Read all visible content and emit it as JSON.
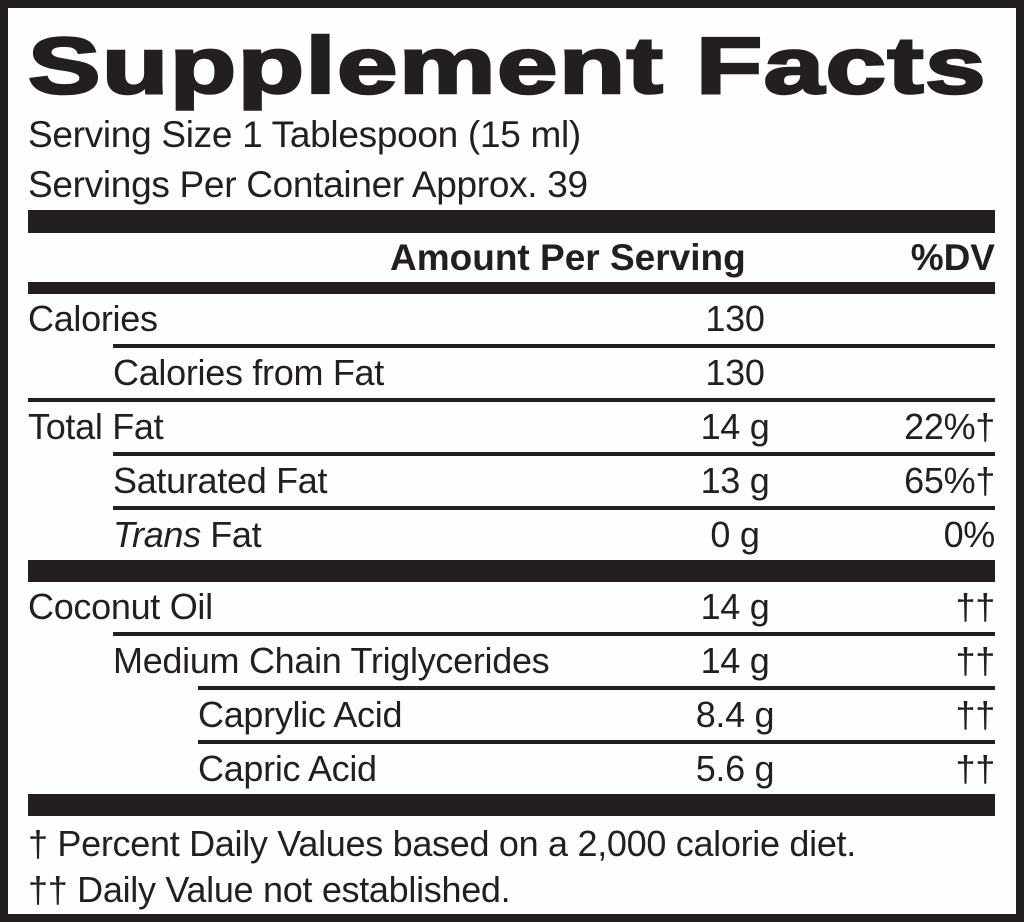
{
  "title": "Supplement Facts",
  "serving": {
    "size_line": "Serving Size 1 Tablespoon (15 ml)",
    "servings_line": "Servings Per Container Approx. 39"
  },
  "header": {
    "amount_label": "Amount Per Serving",
    "dv_label": "%DV"
  },
  "rows": [
    {
      "name": "Calories",
      "amount": "130",
      "dv": "",
      "indent": 0
    },
    {
      "name": "Calories from Fat",
      "amount": "130",
      "dv": "",
      "indent": 1
    },
    {
      "name": "Total Fat",
      "amount": "14 g",
      "dv": "22%†",
      "indent": 0
    },
    {
      "name": "Saturated Fat",
      "amount": "13 g",
      "dv": "65%†",
      "indent": 1
    },
    {
      "name_italic": "Trans",
      "name_rest": "Fat",
      "amount": "0 g",
      "dv": "0%",
      "indent": 1
    },
    {
      "name": "Coconut Oil",
      "amount": "14 g",
      "dv": "††",
      "indent": 0
    },
    {
      "name": "Medium Chain Triglycerides",
      "amount": "14 g",
      "dv": "††",
      "indent": 1
    },
    {
      "name": "Caprylic Acid",
      "amount": "8.4 g",
      "dv": "††",
      "indent": 2
    },
    {
      "name": "Capric Acid",
      "amount": "5.6 g",
      "dv": "††",
      "indent": 2
    }
  ],
  "footnotes": [
    "† Percent Daily Values based on a 2,000 calorie diet.",
    "†† Daily Value not established."
  ],
  "colors": {
    "ink": "#231f20",
    "background": "#fefefe"
  }
}
